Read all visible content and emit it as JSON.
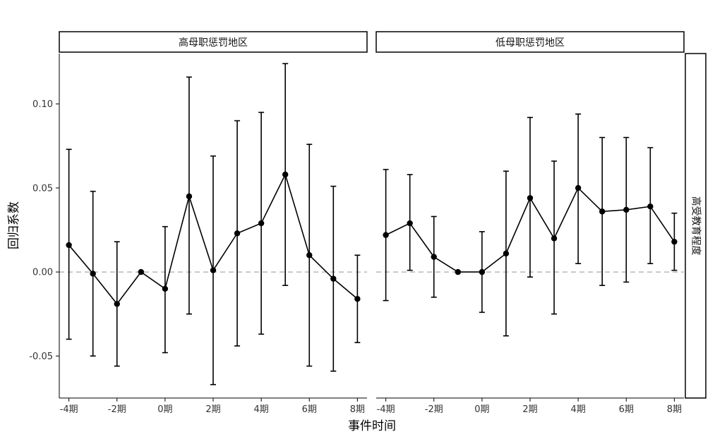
{
  "chart_data": {
    "type": "scatter",
    "xlabel": "事件时间",
    "ylabel": "回归系数",
    "row_strip_label": "高受教育程度",
    "ylim": [
      -0.075,
      0.13
    ],
    "y_ticks": [
      -0.05,
      0.0,
      0.05,
      0.1
    ],
    "y_tick_labels": [
      "-0.05",
      "0.00",
      "0.05",
      "0.10"
    ],
    "x_ticks": [
      -4,
      -2,
      0,
      2,
      4,
      6,
      8
    ],
    "x_tick_labels": [
      "-4期",
      "-2期",
      "0期",
      "2期",
      "4期",
      "6期",
      "8期"
    ],
    "xlim": [
      -4.4,
      8.4
    ],
    "reference_line": 0,
    "grid": false,
    "panels": [
      {
        "title": "高母职惩罚地区",
        "x": [
          -4,
          -3,
          -2,
          -1,
          0,
          1,
          2,
          3,
          4,
          5,
          6,
          7,
          8
        ],
        "y": [
          0.016,
          -0.001,
          -0.019,
          0.0,
          -0.01,
          0.045,
          0.001,
          0.023,
          0.029,
          0.058,
          0.01,
          -0.004,
          -0.016
        ],
        "lower": [
          -0.04,
          -0.05,
          -0.056,
          0.0,
          -0.048,
          -0.025,
          -0.067,
          -0.044,
          -0.037,
          -0.008,
          -0.056,
          -0.059,
          -0.042
        ],
        "upper": [
          0.073,
          0.048,
          0.018,
          0.0,
          0.027,
          0.116,
          0.069,
          0.09,
          0.095,
          0.124,
          0.076,
          0.051,
          0.01
        ]
      },
      {
        "title": "低母职惩罚地区",
        "x": [
          -4,
          -3,
          -2,
          -1,
          0,
          1,
          2,
          3,
          4,
          5,
          6,
          7,
          8
        ],
        "y": [
          0.022,
          0.029,
          0.009,
          0.0,
          0.0,
          0.011,
          0.044,
          0.02,
          0.05,
          0.036,
          0.037,
          0.039,
          0.018
        ],
        "lower": [
          -0.017,
          0.001,
          -0.015,
          0.0,
          -0.024,
          -0.038,
          -0.003,
          -0.025,
          0.005,
          -0.008,
          -0.006,
          0.005,
          0.001
        ],
        "upper": [
          0.061,
          0.058,
          0.033,
          0.0,
          0.024,
          0.06,
          0.092,
          0.066,
          0.094,
          0.08,
          0.08,
          0.074,
          0.035
        ]
      }
    ]
  }
}
